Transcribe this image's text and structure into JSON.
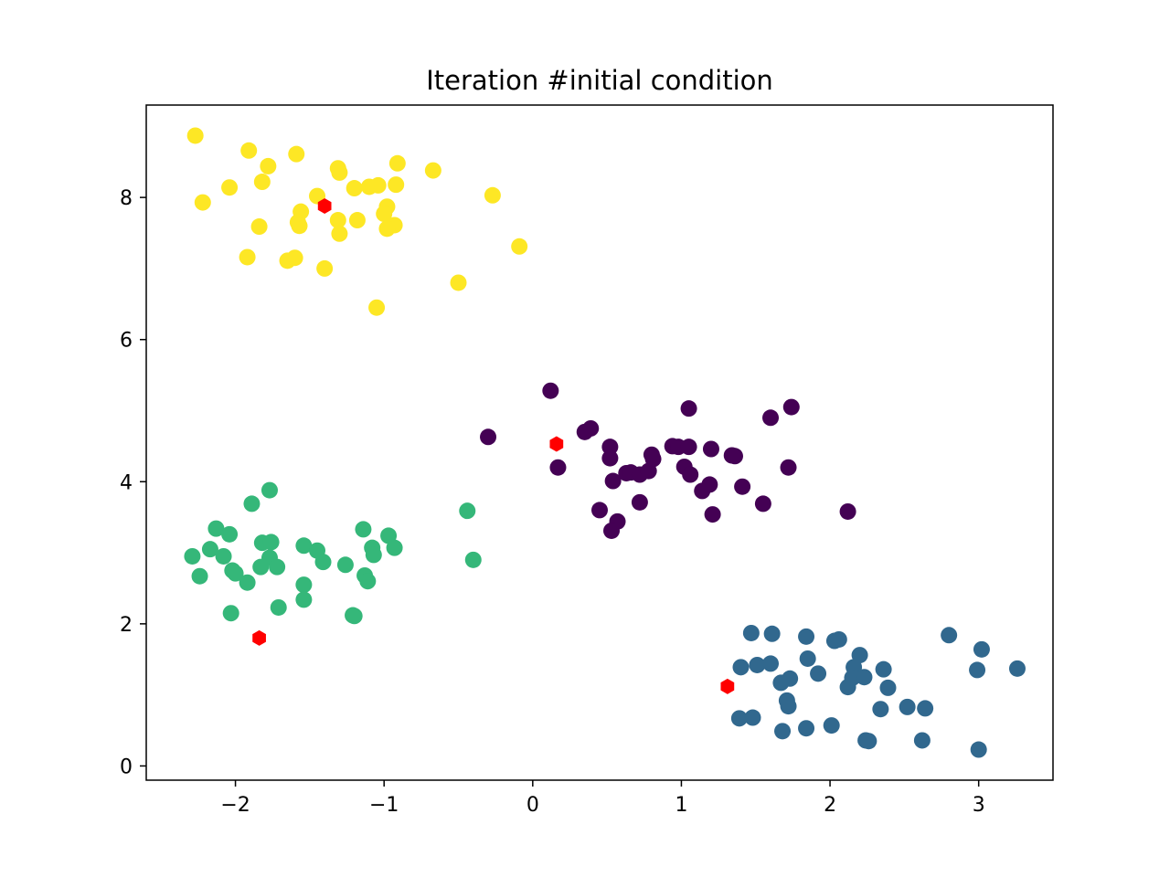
{
  "chart_data": {
    "type": "scatter",
    "title": "Iteration #initial condition",
    "xlabel": "",
    "ylabel": "",
    "xlim": [
      -2.6,
      3.5
    ],
    "ylim": [
      -0.2,
      9.3
    ],
    "xticks": [
      -2,
      -1,
      0,
      1,
      2,
      3
    ],
    "xtick_labels": [
      "−2",
      "−1",
      "0",
      "1",
      "2",
      "3"
    ],
    "yticks": [
      0,
      2,
      4,
      6,
      8
    ],
    "ytick_labels": [
      "0",
      "2",
      "4",
      "6",
      "8"
    ],
    "grid": false,
    "legend": "none",
    "series": [
      {
        "color": "#440154",
        "points": [
          [
            0.12,
            5.28
          ],
          [
            1.05,
            5.03
          ],
          [
            1.74,
            5.05
          ],
          [
            1.6,
            4.9
          ],
          [
            -0.3,
            4.63
          ],
          [
            0.35,
            4.7
          ],
          [
            0.39,
            4.75
          ],
          [
            0.52,
            4.49
          ],
          [
            0.52,
            4.33
          ],
          [
            0.17,
            4.2
          ],
          [
            0.54,
            4.01
          ],
          [
            0.63,
            4.12
          ],
          [
            0.66,
            4.13
          ],
          [
            0.72,
            4.1
          ],
          [
            0.78,
            4.15
          ],
          [
            0.8,
            4.38
          ],
          [
            0.81,
            4.32
          ],
          [
            0.94,
            4.5
          ],
          [
            0.98,
            4.49
          ],
          [
            1.02,
            4.21
          ],
          [
            1.05,
            4.49
          ],
          [
            1.06,
            4.1
          ],
          [
            1.14,
            3.87
          ],
          [
            1.19,
            3.96
          ],
          [
            1.2,
            4.46
          ],
          [
            1.34,
            4.37
          ],
          [
            1.36,
            4.36
          ],
          [
            1.41,
            3.93
          ],
          [
            1.72,
            4.2
          ],
          [
            1.55,
            3.69
          ],
          [
            1.21,
            3.54
          ],
          [
            0.45,
            3.6
          ],
          [
            0.57,
            3.44
          ],
          [
            0.53,
            3.31
          ],
          [
            0.72,
            3.71
          ],
          [
            2.12,
            3.58
          ]
        ]
      },
      {
        "color": "#31688e",
        "points": [
          [
            1.47,
            1.87
          ],
          [
            1.61,
            1.86
          ],
          [
            1.84,
            1.82
          ],
          [
            2.03,
            1.76
          ],
          [
            2.06,
            1.78
          ],
          [
            2.8,
            1.84
          ],
          [
            3.02,
            1.64
          ],
          [
            1.4,
            1.39
          ],
          [
            1.51,
            1.42
          ],
          [
            1.6,
            1.44
          ],
          [
            1.85,
            1.51
          ],
          [
            2.2,
            1.56
          ],
          [
            2.16,
            1.39
          ],
          [
            2.36,
            1.36
          ],
          [
            2.99,
            1.35
          ],
          [
            3.26,
            1.37
          ],
          [
            1.67,
            1.17
          ],
          [
            1.73,
            1.23
          ],
          [
            1.92,
            1.3
          ],
          [
            2.12,
            1.11
          ],
          [
            2.15,
            1.24
          ],
          [
            2.23,
            1.25
          ],
          [
            2.39,
            1.1
          ],
          [
            1.71,
            0.92
          ],
          [
            1.72,
            0.84
          ],
          [
            2.34,
            0.8
          ],
          [
            2.52,
            0.83
          ],
          [
            2.64,
            0.81
          ],
          [
            1.39,
            0.67
          ],
          [
            1.48,
            0.68
          ],
          [
            1.68,
            0.49
          ],
          [
            1.84,
            0.53
          ],
          [
            2.01,
            0.57
          ],
          [
            2.24,
            0.36
          ],
          [
            2.26,
            0.35
          ],
          [
            2.62,
            0.36
          ],
          [
            3.0,
            0.23
          ]
        ]
      },
      {
        "color": "#35b779",
        "points": [
          [
            -1.77,
            3.88
          ],
          [
            -1.89,
            3.69
          ],
          [
            -0.44,
            3.59
          ],
          [
            -2.13,
            3.34
          ],
          [
            -2.04,
            3.26
          ],
          [
            -1.14,
            3.33
          ],
          [
            -0.97,
            3.24
          ],
          [
            -1.82,
            3.14
          ],
          [
            -1.76,
            3.15
          ],
          [
            -1.54,
            3.1
          ],
          [
            -1.45,
            3.03
          ],
          [
            -1.08,
            3.07
          ],
          [
            -0.93,
            3.07
          ],
          [
            -2.17,
            3.05
          ],
          [
            -2.29,
            2.95
          ],
          [
            -2.08,
            2.95
          ],
          [
            -1.77,
            2.93
          ],
          [
            -1.07,
            2.97
          ],
          [
            -1.41,
            2.87
          ],
          [
            -1.26,
            2.83
          ],
          [
            -1.83,
            2.8
          ],
          [
            -1.72,
            2.8
          ],
          [
            -0.4,
            2.9
          ],
          [
            -2.02,
            2.75
          ],
          [
            -2.0,
            2.71
          ],
          [
            -2.24,
            2.67
          ],
          [
            -1.13,
            2.68
          ],
          [
            -1.92,
            2.58
          ],
          [
            -1.54,
            2.55
          ],
          [
            -1.11,
            2.6
          ],
          [
            -1.54,
            2.34
          ],
          [
            -1.71,
            2.23
          ],
          [
            -2.03,
            2.15
          ],
          [
            -1.21,
            2.12
          ],
          [
            -1.2,
            2.11
          ]
        ]
      },
      {
        "color": "#fde725",
        "points": [
          [
            -2.27,
            8.87
          ],
          [
            -1.91,
            8.66
          ],
          [
            -1.59,
            8.61
          ],
          [
            -1.78,
            8.44
          ],
          [
            -1.31,
            8.41
          ],
          [
            -0.91,
            8.48
          ],
          [
            -0.67,
            8.38
          ],
          [
            -1.3,
            8.35
          ],
          [
            -1.82,
            8.22
          ],
          [
            -2.04,
            8.14
          ],
          [
            -1.2,
            8.13
          ],
          [
            -1.1,
            8.15
          ],
          [
            -1.04,
            8.17
          ],
          [
            -0.92,
            8.18
          ],
          [
            -2.22,
            7.93
          ],
          [
            -1.45,
            8.02
          ],
          [
            -0.27,
            8.03
          ],
          [
            -0.98,
            7.87
          ],
          [
            -1.56,
            7.8
          ],
          [
            -1.0,
            7.77
          ],
          [
            -1.31,
            7.68
          ],
          [
            -1.18,
            7.68
          ],
          [
            -1.58,
            7.65
          ],
          [
            -1.57,
            7.6
          ],
          [
            -1.84,
            7.59
          ],
          [
            -0.93,
            7.61
          ],
          [
            -0.98,
            7.56
          ],
          [
            -1.3,
            7.49
          ],
          [
            -0.09,
            7.31
          ],
          [
            -1.92,
            7.16
          ],
          [
            -1.6,
            7.15
          ],
          [
            -1.65,
            7.11
          ],
          [
            -1.4,
            7.0
          ],
          [
            -0.5,
            6.8
          ],
          [
            -1.05,
            6.45
          ]
        ]
      }
    ],
    "centroids": {
      "color": "#ff0000",
      "marker": "hexagon",
      "points": [
        [
          -1.4,
          7.88
        ],
        [
          0.16,
          4.53
        ],
        [
          -1.84,
          1.8
        ],
        [
          1.31,
          1.12
        ]
      ]
    }
  }
}
